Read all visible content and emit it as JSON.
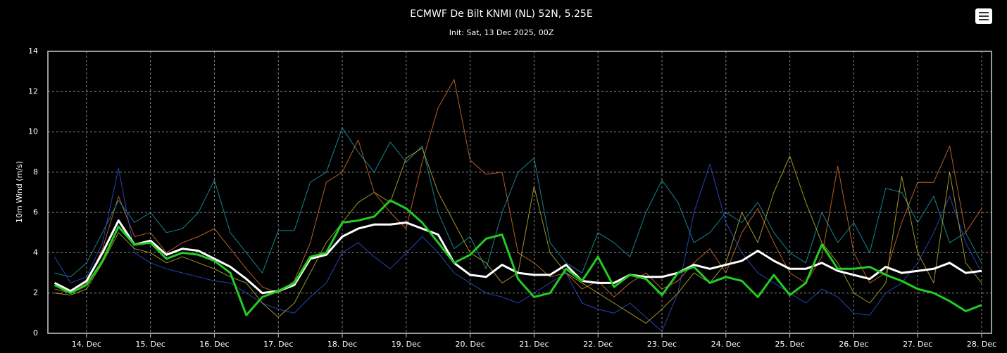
{
  "chart_data": {
    "type": "line",
    "title": "ECMWF De Bilt KNMI (NL) 52N, 5.25E",
    "subtitle": "Init: Sat, 13 Dec 2025, 00Z",
    "y_label": "10m Wind (m/s)",
    "x": [
      12,
      18,
      24,
      30,
      36,
      42,
      48,
      54,
      60,
      66,
      72,
      78,
      84,
      90,
      96,
      102,
      108,
      114,
      120,
      126,
      132,
      138,
      144,
      150,
      156,
      162,
      168,
      174,
      180,
      186,
      192,
      198,
      204,
      210,
      216,
      222,
      228,
      234,
      240,
      246,
      252,
      258,
      264,
      270,
      276,
      282,
      288,
      294,
      300,
      306,
      312,
      318,
      324,
      330,
      336,
      342,
      348,
      354,
      360
    ],
    "xlim": [
      9.5,
      363.7
    ],
    "xticks": [
      {
        "value": 24,
        "label": "14. Dec"
      },
      {
        "value": 48,
        "label": "15. Dec"
      },
      {
        "value": 72,
        "label": "16. Dec"
      },
      {
        "value": 96,
        "label": "17. Dec"
      },
      {
        "value": 120,
        "label": "18. Dec"
      },
      {
        "value": 144,
        "label": "19. Dec"
      },
      {
        "value": 168,
        "label": "20. Dec"
      },
      {
        "value": 192,
        "label": "21. Dec"
      },
      {
        "value": 216,
        "label": "22. Dec"
      },
      {
        "value": 240,
        "label": "23. Dec"
      },
      {
        "value": 264,
        "label": "24. Dec"
      },
      {
        "value": 288,
        "label": "25. Dec"
      },
      {
        "value": 312,
        "label": "26. Dec"
      },
      {
        "value": 336,
        "label": "27. Dec"
      },
      {
        "value": 360,
        "label": "28. Dec"
      }
    ],
    "ylim": [
      0,
      14
    ],
    "yticks": [
      0,
      2,
      4,
      6,
      8,
      10,
      12,
      14
    ],
    "grid": true,
    "series": [
      {
        "color": "#d2702a",
        "width": 1,
        "values": [
          2.2,
          2.0,
          2.5,
          4.2,
          6.8,
          4.8,
          5.0,
          4.0,
          4.5,
          4.8,
          5.2,
          4.2,
          3.2,
          2.3,
          2.0,
          2.6,
          4.5,
          7.5,
          8.0,
          9.6,
          7.0,
          6.0,
          5.2,
          8.5,
          11.2,
          12.6,
          8.6,
          7.9,
          8.0,
          4.0,
          3.5,
          2.8,
          3.0,
          2.2,
          2.6,
          1.8,
          2.5,
          3.0,
          2.2,
          2.6,
          3.5,
          4.2,
          3.0,
          5.0,
          6.2,
          4.5,
          3.0,
          2.5,
          3.8,
          8.3,
          4.0,
          2.5,
          3.0,
          5.5,
          7.5,
          7.5,
          9.3,
          5.0,
          6.2
        ]
      },
      {
        "color": "#1a9aa8",
        "width": 1,
        "values": [
          3.0,
          2.8,
          3.5,
          5.0,
          6.6,
          5.5,
          6.0,
          5.0,
          5.2,
          6.0,
          7.6,
          5.0,
          4.0,
          3.0,
          5.1,
          5.1,
          7.5,
          8.0,
          10.2,
          9.0,
          8.0,
          9.5,
          8.5,
          9.3,
          6.0,
          4.2,
          4.8,
          3.2,
          6.0,
          8.0,
          8.7,
          4.5,
          3.5,
          3.0,
          5.0,
          4.5,
          3.8,
          6.0,
          7.6,
          6.5,
          4.5,
          5.0,
          6.0,
          5.5,
          6.5,
          5.0,
          4.0,
          3.5,
          6.0,
          4.5,
          5.5,
          4.0,
          7.2,
          7.0,
          5.5,
          6.8,
          4.5,
          5.0,
          3.5
        ]
      },
      {
        "color": "#2a4fd0",
        "width": 1,
        "values": [
          3.8,
          2.5,
          2.8,
          4.5,
          8.2,
          4.0,
          3.5,
          3.2,
          3.0,
          2.8,
          2.6,
          2.5,
          2.0,
          1.5,
          1.2,
          1.0,
          1.8,
          2.5,
          4.0,
          4.5,
          3.8,
          3.2,
          4.0,
          4.8,
          4.0,
          3.0,
          2.5,
          2.0,
          1.8,
          1.5,
          2.0,
          2.5,
          3.0,
          1.5,
          1.2,
          1.0,
          1.5,
          0.8,
          0.1,
          2.0,
          6.0,
          8.4,
          5.5,
          4.0,
          3.0,
          2.5,
          2.0,
          1.5,
          2.2,
          1.8,
          1.0,
          0.9,
          2.0,
          2.5,
          3.5,
          5.0,
          6.8,
          4.5,
          3.0
        ]
      },
      {
        "color": "#b8b030",
        "width": 1,
        "values": [
          2.0,
          1.9,
          2.2,
          3.5,
          5.0,
          4.2,
          4.0,
          3.5,
          3.8,
          3.5,
          3.2,
          2.8,
          2.5,
          1.5,
          0.8,
          1.5,
          3.0,
          4.5,
          5.5,
          6.5,
          7.0,
          6.5,
          8.7,
          9.2,
          7.0,
          5.5,
          4.0,
          3.5,
          2.5,
          3.0,
          7.3,
          4.0,
          3.0,
          2.5,
          2.0,
          1.5,
          1.0,
          0.5,
          1.2,
          2.0,
          3.0,
          2.5,
          3.5,
          6.0,
          4.5,
          7.0,
          8.8,
          6.5,
          4.5,
          3.5,
          2.0,
          1.5,
          2.5,
          7.8,
          4.0,
          2.5,
          8.0,
          3.5,
          2.5
        ]
      },
      {
        "color": "#ffffff",
        "width": 3,
        "values": [
          2.5,
          2.1,
          2.6,
          4,
          5.6,
          4.4,
          4.6,
          3.9,
          4.2,
          4.1,
          3.7,
          3.3,
          2.7,
          2.0,
          2.1,
          2.4,
          3.7,
          3.9,
          4.8,
          5.2,
          5.4,
          5.4,
          5.5,
          5.2,
          4.9,
          3.5,
          2.9,
          2.8,
          3.4,
          3.0,
          2.9,
          2.9,
          3.4,
          2.6,
          2.5,
          2.5,
          2.9,
          2.8,
          2.8,
          3.0,
          3.4,
          3.2,
          3.4,
          3.6,
          4.1,
          3.6,
          3.2,
          3.2,
          3.5,
          3.1,
          2.9,
          2.7,
          3.3,
          3.0,
          3.1,
          3.2,
          3.5,
          3.0,
          3.1
        ]
      },
      {
        "color": "#22cc22",
        "width": 3,
        "values": [
          2.4,
          2.0,
          2.4,
          3.6,
          5.3,
          4.4,
          4.5,
          3.7,
          4.0,
          3.9,
          3.6,
          3.0,
          0.9,
          1.8,
          2.1,
          2.5,
          3.8,
          4.0,
          5.5,
          5.6,
          5.8,
          6.6,
          6.2,
          5.5,
          4.5,
          3.5,
          3.9,
          4.7,
          4.9,
          2.7,
          1.8,
          2.0,
          3.2,
          2.6,
          3.8,
          2.3,
          2.9,
          2.7,
          1.9,
          3.0,
          3.3,
          2.5,
          2.8,
          2.6,
          1.8,
          2.9,
          1.9,
          2.5,
          4.4,
          3.2,
          3.2,
          3.3,
          2.9,
          2.6,
          2.2,
          2.0,
          1.6,
          1.1,
          1.4
        ]
      }
    ]
  }
}
